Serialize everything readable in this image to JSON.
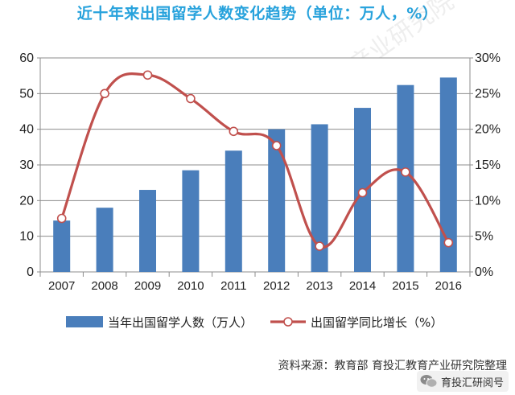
{
  "title": "近十年来出国留学人数变化趋势（单位：万人，%）",
  "source": "资料来源：教育部  育投汇教育产业研究院整理",
  "watermark": "育投汇教育产业研究院",
  "badge_label": "育投汇研阅号",
  "badge_icon": "wechat-icon",
  "chart_data": {
    "type": "bar+line",
    "categories": [
      "2007",
      "2008",
      "2009",
      "2010",
      "2011",
      "2012",
      "2013",
      "2014",
      "2015",
      "2016"
    ],
    "series": [
      {
        "name": "当年出国留学人数（万人）",
        "type": "bar",
        "axis": "left",
        "color": "#4a7ebb",
        "values": [
          14.4,
          18.0,
          23.0,
          28.5,
          34.0,
          40.0,
          41.4,
          46.0,
          52.4,
          54.5
        ]
      },
      {
        "name": "出国留学同比增长（%）",
        "type": "line",
        "axis": "right",
        "color": "#c0504d",
        "values": [
          7.5,
          25.0,
          27.6,
          24.3,
          19.7,
          17.7,
          3.6,
          11.1,
          14.0,
          4.1
        ]
      }
    ],
    "y_left": {
      "min": 0,
      "max": 60,
      "ticks": [
        0,
        10,
        20,
        30,
        40,
        50,
        60
      ]
    },
    "y_right": {
      "min": 0,
      "max": 30,
      "ticks": [
        "0%",
        "5%",
        "10%",
        "15%",
        "20%",
        "25%",
        "30%"
      ]
    },
    "grid": true,
    "legend_position": "bottom"
  }
}
